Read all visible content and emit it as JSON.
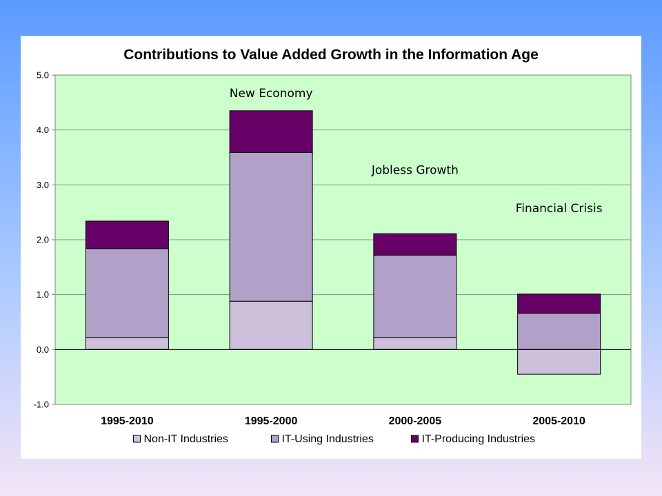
{
  "chart_data": {
    "type": "bar",
    "stacked": true,
    "title": "Contributions to Value Added Growth in the Information Age",
    "categories": [
      "1995-2010",
      "1995-2000",
      "2000-2005",
      "2005-2010"
    ],
    "series": [
      {
        "name": "Non-IT Industries",
        "color": "#ccc0da",
        "values": [
          0.22,
          0.88,
          0.22,
          -0.45
        ]
      },
      {
        "name": "IT-Using Industries",
        "color": "#b1a0c7",
        "values": [
          1.62,
          2.71,
          1.5,
          0.66
        ]
      },
      {
        "name": "IT-Producing Industries",
        "color": "#660066",
        "values": [
          0.5,
          0.76,
          0.39,
          0.35
        ]
      }
    ],
    "ylim": [
      -1.0,
      5.0
    ],
    "yticks": [
      "5.0",
      "4.0",
      "3.0",
      "2.0",
      "1.0",
      "0.0",
      "-1.0"
    ],
    "ytick_values": [
      5,
      4,
      3,
      2,
      1,
      0,
      -1
    ],
    "grid": true,
    "plot_background": "#ccffcc",
    "legend_position": "bottom",
    "annotations": [
      {
        "text": "New Economy",
        "x_category": "1995-2000",
        "y": 4.6
      },
      {
        "text": "Jobless Growth",
        "x_category": "2000-2005",
        "y": 3.2
      },
      {
        "text": "Financial Crisis",
        "x_category": "2005-2010",
        "y": 2.5
      }
    ]
  }
}
